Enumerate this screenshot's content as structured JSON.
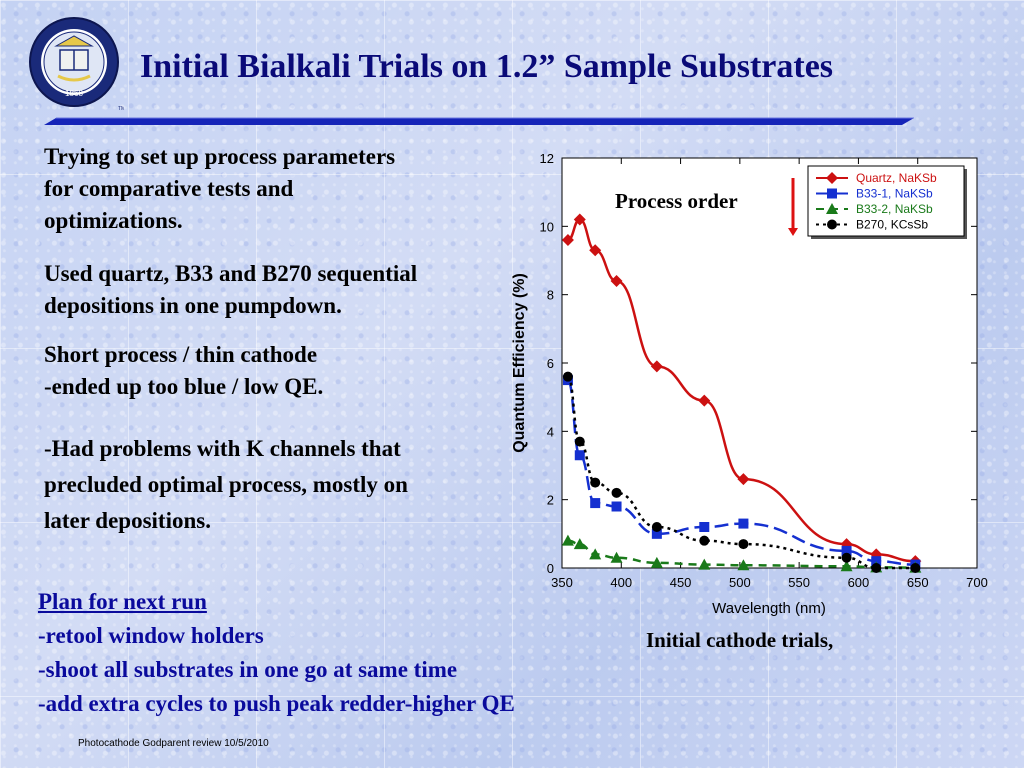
{
  "title": "Initial Bialkali Trials on 1.2” Sample Substrates",
  "seal": {
    "year": "1868",
    "text": "THE UNIVERSITY OF CALIFORNIA BERKELEY",
    "icon": "university-seal-icon"
  },
  "left_text": {
    "p1_lines": [
      "Trying to set up process parameters",
      "for comparative tests and",
      "optimizations."
    ],
    "p2_lines": [
      "Used quartz, B33 and B270 sequential",
      "depositions in one pumpdown."
    ],
    "p3_lines": [
      "Short process / thin cathode",
      "-ended up too blue / low QE."
    ],
    "p4_lines": [
      "-Had problems with K channels that",
      "precluded optimal process, mostly on",
      "later depositions."
    ]
  },
  "plan": {
    "heading": "Plan for next run",
    "items": [
      "-retool window holders",
      "-shoot all substrates in one go at same time",
      "-add extra cycles to push peak redder-higher QE"
    ]
  },
  "process_order_label": "Process order",
  "caption": "Initial cathode trials,",
  "footer": "Photocathode Godparent review  10/5/2010",
  "colors": {
    "title": "#0a0a78",
    "plan": "#0a0a9c",
    "quartz": "#cc1111",
    "b33_1": "#1530d0",
    "b33_2": "#1a7a1a",
    "b270": "#000000",
    "arrow": "#dd1111"
  },
  "chart_data": {
    "type": "line",
    "xlabel": "Wavelength  (nm)",
    "ylabel": "Quantum  Efficiency  (%)",
    "xlim": [
      350,
      700
    ],
    "ylim": [
      0,
      12
    ],
    "xticks": [
      350,
      400,
      450,
      500,
      550,
      600,
      650,
      700
    ],
    "yticks": [
      0,
      2,
      4,
      6,
      8,
      10,
      12
    ],
    "legend_position": "top-right",
    "series": [
      {
        "name": "Quartz, NaKSb",
        "marker": "diamond",
        "dash": "solid",
        "color_key": "quartz",
        "x": [
          355,
          365,
          378,
          396,
          430,
          470,
          503,
          590,
          615,
          648
        ],
        "y": [
          9.6,
          10.2,
          9.3,
          8.4,
          5.9,
          4.9,
          2.6,
          0.7,
          0.4,
          0.2
        ]
      },
      {
        "name": "B33-1,  NaKSb",
        "marker": "square",
        "dash": "longdash",
        "color_key": "b33_1",
        "x": [
          355,
          365,
          378,
          396,
          430,
          470,
          503,
          590,
          615,
          648
        ],
        "y": [
          5.5,
          3.3,
          1.9,
          1.8,
          1.0,
          1.2,
          1.3,
          0.5,
          0.2,
          0.1
        ]
      },
      {
        "name": "B33-2,  NaKSb",
        "marker": "triangle",
        "dash": "dash",
        "color_key": "b33_2",
        "x": [
          355,
          365,
          378,
          396,
          430,
          470,
          503,
          590,
          615,
          648
        ],
        "y": [
          0.8,
          0.7,
          0.4,
          0.3,
          0.15,
          0.1,
          0.08,
          0.05,
          0.02,
          0.01
        ]
      },
      {
        "name": "B270,  KCsSb",
        "marker": "circle",
        "dash": "dot",
        "color_key": "b270",
        "x": [
          355,
          365,
          378,
          396,
          430,
          470,
          503,
          590,
          615,
          648
        ],
        "y": [
          5.6,
          3.7,
          2.5,
          2.2,
          1.2,
          0.8,
          0.7,
          0.3,
          0.0,
          0.0
        ]
      }
    ]
  }
}
